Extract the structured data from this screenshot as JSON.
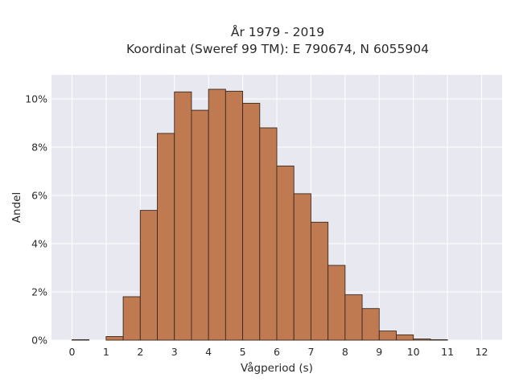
{
  "chart_data": {
    "type": "bar",
    "title": "År 1979 - 2019",
    "subtitle": "Koordinat (Sweref 99 TM): E 790674, N 6055904",
    "xlabel": "Vågperiod (s)",
    "ylabel": "Andel",
    "xlim": [
      -0.6,
      12.6
    ],
    "ylim": [
      0,
      0.11
    ],
    "xticks": [
      0,
      1,
      2,
      3,
      4,
      5,
      6,
      7,
      8,
      9,
      10,
      11,
      12
    ],
    "yticks": [
      0,
      0.02,
      0.04,
      0.06,
      0.08,
      0.1
    ],
    "ytick_labels": [
      "0%",
      "2%",
      "4%",
      "6%",
      "8%",
      "10%"
    ],
    "bin_width": 0.5,
    "bin_starts": [
      0,
      0.5,
      1,
      1.5,
      2,
      2.5,
      3,
      3.5,
      4,
      4.5,
      5,
      5.5,
      6,
      6.5,
      7,
      7.5,
      8,
      8.5,
      9,
      9.5,
      10,
      10.5,
      11,
      11.5,
      12
    ],
    "values": [
      0.0002,
      0,
      0.0015,
      0.018,
      0.0538,
      0.0857,
      0.1029,
      0.0953,
      0.104,
      0.1032,
      0.0982,
      0.088,
      0.0722,
      0.0607,
      0.0489,
      0.031,
      0.0188,
      0.0131,
      0.0038,
      0.0022,
      0.0005,
      0.0002,
      0,
      0,
      0
    ],
    "grid": true,
    "legend": "none",
    "colors": {
      "bar_fill": "#c07a52",
      "bar_edge": "#3a2a20",
      "plot_bg": "#e8e8f0",
      "grid": "#ffffff"
    }
  }
}
